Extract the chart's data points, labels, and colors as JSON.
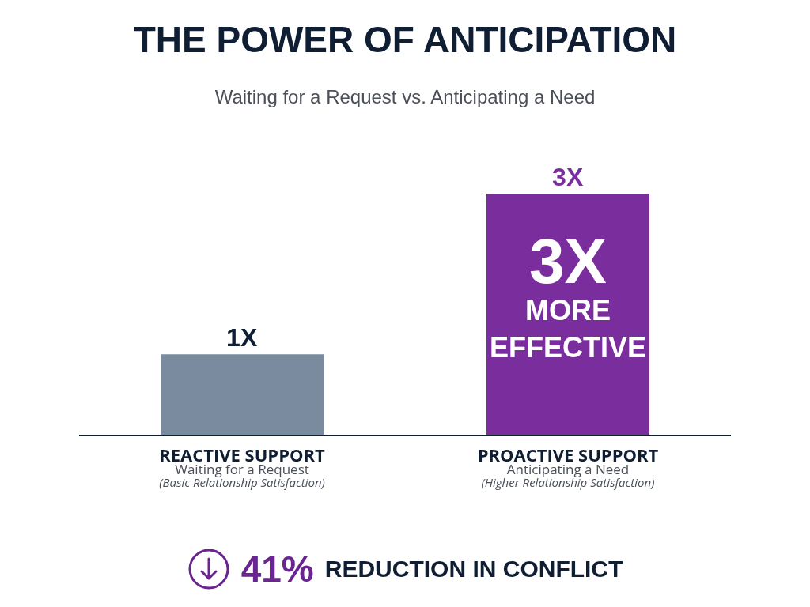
{
  "chart_data": {
    "type": "bar",
    "title": "THE POWER OF ANTICIPATION",
    "subtitle": "Waiting for a Request vs. Anticipating a Need",
    "categories": [
      "REACTIVE SUPPORT\nWaiting for a Request\n(Basic Relationship Satisfaction)",
      "PROACTIVE SUPPORT\nAnticipating a Need\n(Higher Relationship Satisfaction)"
    ],
    "values": [
      1,
      3
    ],
    "colors": [
      "#7a8ba0",
      "#7a2e9e"
    ],
    "value_labels": [
      "1X",
      "3X"
    ],
    "annotations": [
      "3X MORE EFFECTIVE",
      "41% REDUCTION IN CONFLICT"
    ]
  }
}
